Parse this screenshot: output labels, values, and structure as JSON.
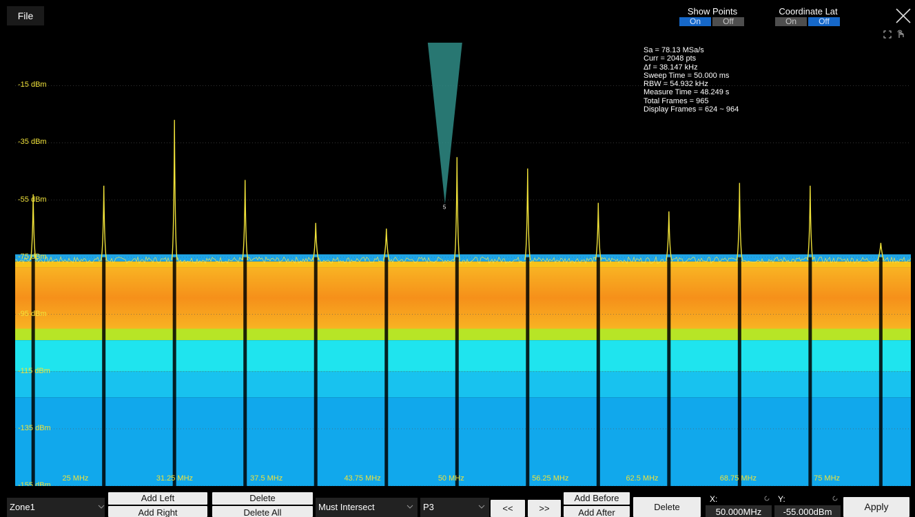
{
  "window": {
    "file_menu": "File",
    "show_points": {
      "label": "Show Points",
      "on": "On",
      "off": "Off",
      "selected": "On"
    },
    "coordinate_label": {
      "label": "Coordinate Lat",
      "on": "On",
      "off": "Off",
      "selected": "Off"
    }
  },
  "plot": {
    "y_labels": [
      "-15 dBm",
      "-35 dBm",
      "-55 dBm",
      "-75 dBm",
      "-95 dBm",
      "-115 dBm",
      "-135 dBm",
      "-155 dBm"
    ],
    "x_labels": [
      "25 MHz",
      "31.25 MHz",
      "37.5 MHz",
      "43.75 MHz",
      "50 MHz",
      "56.25 MHz",
      "62.5 MHz",
      "68.75 MHz",
      "75 MHz"
    ],
    "info": [
      "Sa = 78.13 MSa/s",
      "Curr = 2048 pts",
      "Δf = 38.147 kHz",
      "Sweep Time = 50.000 ms",
      "RBW = 54.932 kHz",
      "Measure Time = 48.249 s",
      "Total Frames = 965",
      "Display Frames = 624 ~ 964"
    ],
    "mask_point_label": "5",
    "colors": {
      "trace": "#f0e23a",
      "noise_top": "#f8c21a",
      "noise_orange": "#f79a1c",
      "noise_green": "#b7e526",
      "noise_cyan": "#1fe4ee",
      "noise_blue": "#11a8ec",
      "mask": "#2f8c86"
    }
  },
  "chart_data": {
    "type": "line",
    "title": "",
    "xlabel": "",
    "ylabel": "",
    "x_unit": "MHz",
    "y_unit": "dBm",
    "xlim": [
      21.4,
      81.0
    ],
    "ylim": [
      -155,
      0
    ],
    "series": [
      {
        "x": [
          22.6,
          27.3,
          32.0,
          36.7,
          41.4,
          46.1,
          50.8,
          55.5,
          60.2,
          64.9,
          69.6,
          74.3,
          79.0
        ],
        "values": [
          -53,
          -50,
          -27,
          -48,
          -63,
          -65,
          -40,
          -44,
          -56,
          -59,
          -49,
          -50,
          -70
        ]
      }
    ],
    "noise_floor_dbm": -76
  },
  "toolbar": {
    "zone_select": "Zone1",
    "add_left": "Add Left",
    "add_right": "Add Right",
    "delete_top": "Delete",
    "delete_all": "Delete All",
    "intersect_select": "Must Intersect",
    "point_select": "P3",
    "prev": "<<",
    "next": ">>",
    "add_before": "Add Before",
    "add_after": "Add After",
    "delete_point": "Delete",
    "x_label": "X:",
    "x_value": "50.000MHz",
    "y_label": "Y:",
    "y_value": "-55.000dBm",
    "apply": "Apply"
  }
}
